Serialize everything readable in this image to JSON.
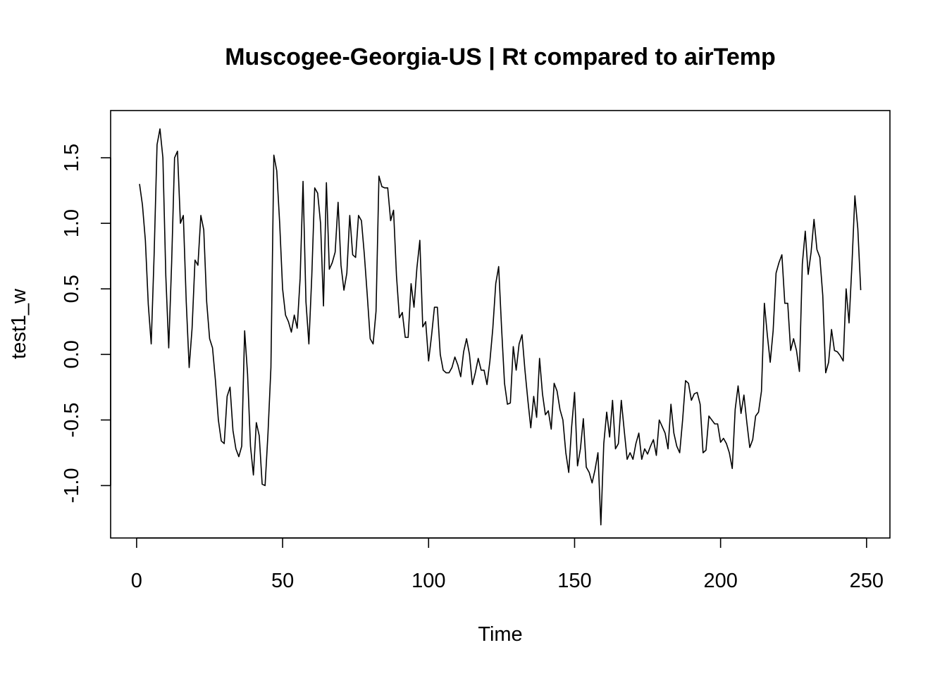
{
  "chart_data": {
    "type": "line",
    "title": "Muscogee-Georgia-US | Rt compared to airTemp",
    "xlabel": "Time",
    "ylabel": "test1_w",
    "xlim": [
      -8.9,
      258
    ],
    "ylim": [
      -1.4,
      1.86
    ],
    "x_ticks": [
      0,
      50,
      100,
      150,
      200,
      250
    ],
    "y_ticks": [
      -1.0,
      -0.5,
      0.0,
      0.5,
      1.0,
      1.5
    ],
    "x_tick_labels": [
      "0",
      "50",
      "100",
      "150",
      "200",
      "250"
    ],
    "y_tick_labels": [
      "-1.0",
      "-0.5",
      "0.0",
      "0.5",
      "1.0",
      "1.5"
    ],
    "grid": false,
    "x_start": 1,
    "series": [
      {
        "color": "#000000",
        "values": [
          1.3,
          1.14,
          0.87,
          0.38,
          0.08,
          0.76,
          1.6,
          1.72,
          1.5,
          0.6,
          0.05,
          0.7,
          1.5,
          1.55,
          1.0,
          1.06,
          0.4,
          -0.1,
          0.2,
          0.72,
          0.68,
          1.06,
          0.95,
          0.4,
          0.12,
          0.05,
          -0.2,
          -0.5,
          -0.66,
          -0.68,
          -0.32,
          -0.25,
          -0.58,
          -0.72,
          -0.78,
          -0.7,
          0.18,
          -0.15,
          -0.7,
          -0.92,
          -0.52,
          -0.62,
          -0.99,
          -1.0,
          -0.6,
          -0.1,
          1.52,
          1.4,
          1.0,
          0.5,
          0.3,
          0.25,
          0.17,
          0.3,
          0.2,
          0.58,
          1.32,
          0.4,
          0.08,
          0.6,
          1.27,
          1.23,
          1.0,
          0.37,
          1.31,
          0.65,
          0.7,
          0.78,
          1.16,
          0.68,
          0.49,
          0.62,
          1.06,
          0.76,
          0.74,
          1.06,
          1.02,
          0.76,
          0.45,
          0.12,
          0.08,
          0.33,
          1.36,
          1.28,
          1.27,
          1.27,
          1.02,
          1.1,
          0.6,
          0.28,
          0.32,
          0.13,
          0.13,
          0.54,
          0.36,
          0.66,
          0.87,
          0.21,
          0.25,
          -0.05,
          0.14,
          0.36,
          0.36,
          0.0,
          -0.12,
          -0.14,
          -0.14,
          -0.1,
          -0.02,
          -0.08,
          -0.17,
          0.02,
          0.12,
          0.0,
          -0.23,
          -0.14,
          -0.03,
          -0.12,
          -0.12,
          -0.23,
          -0.05,
          0.2,
          0.54,
          0.67,
          0.2,
          -0.22,
          -0.38,
          -0.37,
          0.06,
          -0.12,
          0.08,
          0.15,
          -0.12,
          -0.35,
          -0.56,
          -0.32,
          -0.48,
          -0.03,
          -0.3,
          -0.46,
          -0.43,
          -0.57,
          -0.22,
          -0.28,
          -0.42,
          -0.5,
          -0.75,
          -0.9,
          -0.55,
          -0.29,
          -0.85,
          -0.72,
          -0.49,
          -0.86,
          -0.9,
          -0.98,
          -0.88,
          -0.75,
          -1.3,
          -0.68,
          -0.44,
          -0.63,
          -0.35,
          -0.72,
          -0.68,
          -0.35,
          -0.58,
          -0.8,
          -0.75,
          -0.8,
          -0.68,
          -0.6,
          -0.8,
          -0.72,
          -0.76,
          -0.7,
          -0.65,
          -0.77,
          -0.5,
          -0.55,
          -0.6,
          -0.72,
          -0.38,
          -0.6,
          -0.7,
          -0.75,
          -0.5,
          -0.2,
          -0.22,
          -0.35,
          -0.3,
          -0.29,
          -0.38,
          -0.75,
          -0.73,
          -0.47,
          -0.5,
          -0.53,
          -0.53,
          -0.67,
          -0.64,
          -0.68,
          -0.75,
          -0.87,
          -0.42,
          -0.24,
          -0.45,
          -0.31,
          -0.52,
          -0.71,
          -0.65,
          -0.47,
          -0.44,
          -0.28,
          0.39,
          0.15,
          -0.06,
          0.18,
          0.62,
          0.7,
          0.76,
          0.39,
          0.39,
          0.03,
          0.12,
          0.03,
          -0.13,
          0.69,
          0.94,
          0.61,
          0.78,
          1.03,
          0.8,
          0.74,
          0.45,
          -0.14,
          -0.06,
          0.19,
          0.03,
          0.02,
          -0.01,
          -0.05,
          0.5,
          0.24,
          0.69,
          1.21,
          0.96,
          0.49
        ]
      }
    ]
  }
}
